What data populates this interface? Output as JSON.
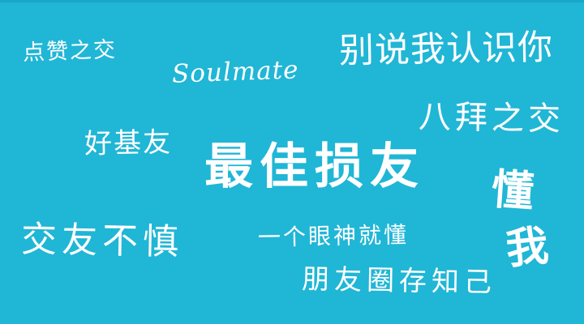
{
  "background_color": "#20b6d6",
  "text_color": "#ffffff",
  "words": {
    "dianzan": "点赞之交",
    "soulmate": "Soulmate",
    "biesuo": "别说我认识你",
    "bazi": "八拜之交",
    "haojiyou": "好基友",
    "zuijia": "最佳损友",
    "dong": "懂",
    "wo": "我",
    "jiaoyou": "交友不慎",
    "yigeyan": "一个眼神就懂",
    "pengyou": "朋友圈存知己"
  }
}
